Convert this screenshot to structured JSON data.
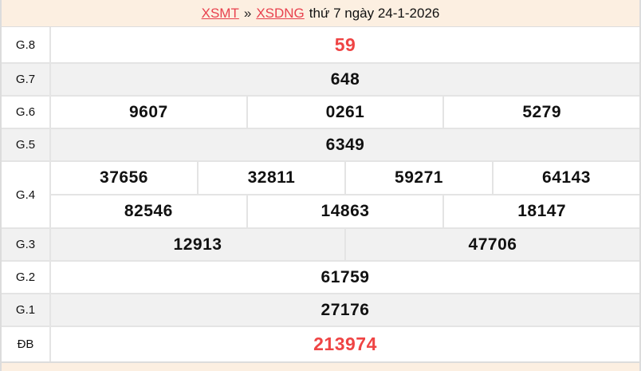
{
  "header": {
    "region_link": "XSMT",
    "separator": "»",
    "province_link": "XSDNG",
    "date_text": "thứ 7 ngày 24-1-2026"
  },
  "colors": {
    "peach": "#fcefe1",
    "link-red": "#e8414e",
    "accent-red": "#ef4444",
    "row-alt": "#f1f1f1",
    "border": "#e4e4e4"
  },
  "table": {
    "rows": [
      {
        "label": "G.8",
        "cells": [
          "59"
        ],
        "highlight": true
      },
      {
        "label": "G.7",
        "cells": [
          "648"
        ]
      },
      {
        "label": "G.6",
        "cells": [
          "9607",
          "0261",
          "5279"
        ]
      },
      {
        "label": "G.5",
        "cells": [
          "6349"
        ]
      },
      {
        "label": "G.4",
        "cells_row1": [
          "37656",
          "32811",
          "59271",
          "64143"
        ],
        "cells_row2": [
          "82546",
          "14863",
          "18147"
        ]
      },
      {
        "label": "G.3",
        "cells": [
          "12913",
          "47706"
        ]
      },
      {
        "label": "G.2",
        "cells": [
          "61759"
        ]
      },
      {
        "label": "G.1",
        "cells": [
          "27176"
        ]
      },
      {
        "label": "ĐB",
        "cells": [
          "213974"
        ],
        "highlight": true
      }
    ]
  }
}
